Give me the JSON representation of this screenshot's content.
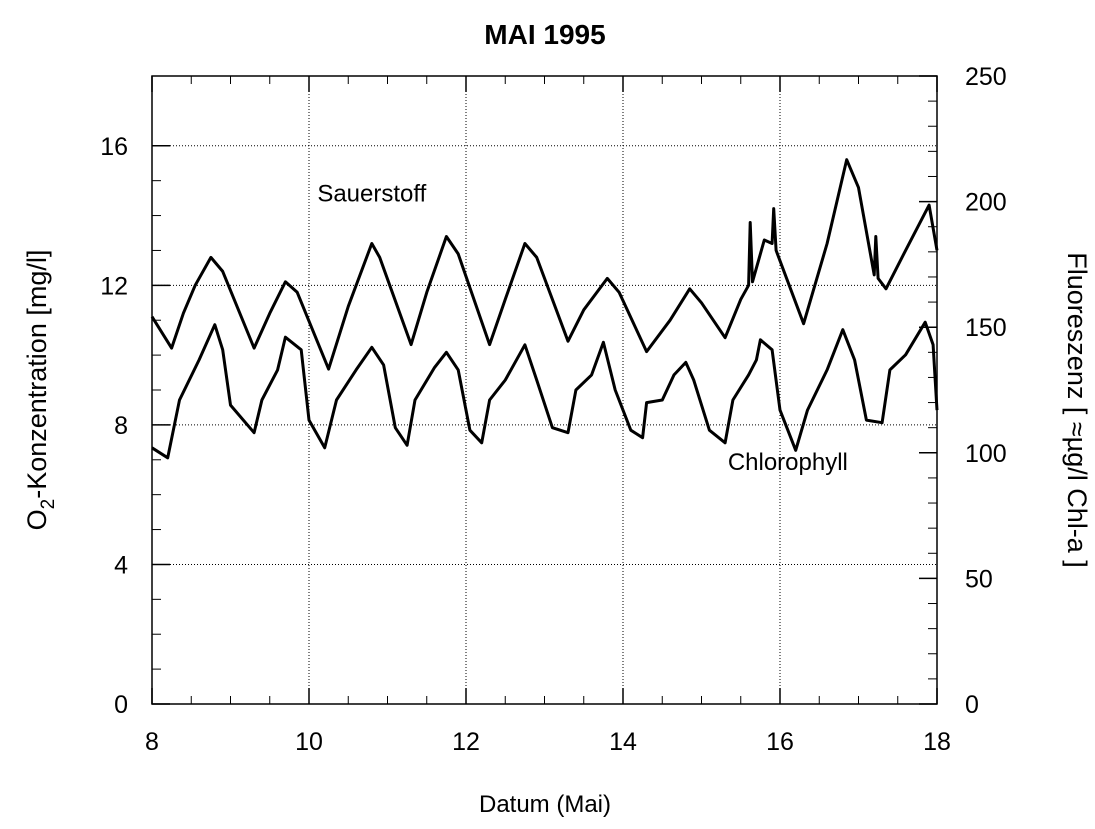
{
  "chart_data": {
    "type": "line",
    "title": "MAI 1995",
    "xlabel": "Datum (Mai)",
    "ylabel": {
      "base": "O",
      "sub": "2",
      "rest": "-Konzentration [mg/l]"
    },
    "y2label": "Fluoreszenz [ ≈µg/l Chl-a ]",
    "annotations": [
      {
        "text": "Sauerstoff",
        "x": 10.8,
        "y": 14.4
      },
      {
        "text": "Chlorophyll",
        "x": 16.1,
        "y": 6.7
      }
    ],
    "xlim": [
      8,
      18
    ],
    "xticks": [
      8,
      10,
      12,
      14,
      16,
      18
    ],
    "ylim": [
      0,
      18
    ],
    "yticks": [
      0,
      4,
      8,
      12,
      16
    ],
    "y2lim": [
      0,
      250
    ],
    "y2ticks": [
      0,
      50,
      100,
      150,
      200,
      250
    ],
    "grid": true,
    "series": [
      {
        "name": "Sauerstoff",
        "color": "#000000",
        "axis": "y",
        "x": [
          8.0,
          8.25,
          8.4,
          8.55,
          8.75,
          8.9,
          9.3,
          9.5,
          9.7,
          9.85,
          10.25,
          10.5,
          10.8,
          10.9,
          11.3,
          11.5,
          11.75,
          11.9,
          12.3,
          12.5,
          12.75,
          12.9,
          13.3,
          13.5,
          13.8,
          13.95,
          14.3,
          14.6,
          14.85,
          15.0,
          15.3,
          15.5,
          15.6,
          15.62,
          15.65,
          15.8,
          15.9,
          15.92,
          15.95,
          16.3,
          16.6,
          16.85,
          17.0,
          17.2,
          17.22,
          17.25,
          17.35,
          17.6,
          17.9,
          18.0
        ],
        "values": [
          11.1,
          10.2,
          11.2,
          12.0,
          12.8,
          12.4,
          10.2,
          11.2,
          12.1,
          11.8,
          9.6,
          11.4,
          13.2,
          12.8,
          10.3,
          11.8,
          13.4,
          12.9,
          10.3,
          11.6,
          13.2,
          12.8,
          10.4,
          11.3,
          12.2,
          11.8,
          10.1,
          11.0,
          11.9,
          11.5,
          10.5,
          11.6,
          12.0,
          13.8,
          12.1,
          13.3,
          13.2,
          14.2,
          13.0,
          10.9,
          13.2,
          15.6,
          14.8,
          12.3,
          13.4,
          12.2,
          11.9,
          13.0,
          14.3,
          13.0
        ]
      },
      {
        "name": "Chlorophyll",
        "color": "#000000",
        "axis": "y2",
        "x": [
          8.0,
          8.2,
          8.35,
          8.6,
          8.8,
          8.9,
          9.0,
          9.3,
          9.4,
          9.6,
          9.7,
          9.9,
          10.0,
          10.2,
          10.35,
          10.6,
          10.8,
          10.95,
          11.1,
          11.25,
          11.35,
          11.6,
          11.75,
          11.9,
          12.05,
          12.2,
          12.3,
          12.5,
          12.75,
          12.9,
          13.1,
          13.3,
          13.4,
          13.6,
          13.75,
          13.9,
          14.1,
          14.25,
          14.3,
          14.5,
          14.65,
          14.8,
          14.9,
          15.1,
          15.3,
          15.4,
          15.6,
          15.7,
          15.75,
          15.9,
          16.0,
          16.2,
          16.35,
          16.6,
          16.8,
          16.95,
          17.1,
          17.3,
          17.4,
          17.6,
          17.85,
          17.95,
          18.0
        ],
        "values": [
          102,
          98,
          121,
          137,
          151,
          141,
          119,
          108,
          121,
          133,
          146,
          141,
          113,
          102,
          121,
          133,
          142,
          135,
          110,
          103,
          121,
          134,
          140,
          133,
          109,
          104,
          121,
          129,
          143,
          129,
          110,
          108,
          125,
          131,
          144,
          125,
          109,
          106,
          120,
          121,
          131,
          136,
          129,
          109,
          104,
          121,
          131,
          137,
          145,
          141,
          117,
          101,
          117,
          133,
          149,
          137,
          113,
          112,
          133,
          139,
          152,
          143,
          117
        ]
      }
    ]
  }
}
